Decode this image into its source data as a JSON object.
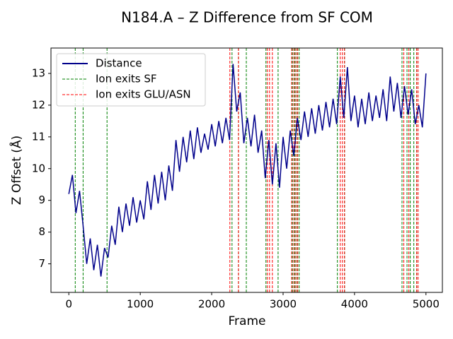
{
  "chart_data": {
    "type": "line",
    "title": "N184.A – Z Difference from SF COM",
    "x_label": "Frame",
    "y_label": "Z Offset (Å)",
    "xlim": [
      -250,
      5230
    ],
    "ylim": [
      6.1,
      13.8
    ],
    "xticks": [
      0,
      1000,
      2000,
      3000,
      4000,
      5000
    ],
    "yticks": [
      7,
      8,
      9,
      10,
      11,
      12,
      13
    ],
    "legend": "upper left",
    "x": [
      0,
      50,
      100,
      150,
      200,
      250,
      300,
      350,
      400,
      450,
      500,
      550,
      600,
      650,
      700,
      750,
      800,
      850,
      900,
      950,
      1000,
      1050,
      1100,
      1150,
      1200,
      1250,
      1300,
      1350,
      1400,
      1450,
      1500,
      1550,
      1600,
      1650,
      1700,
      1750,
      1800,
      1850,
      1900,
      1950,
      2000,
      2050,
      2100,
      2150,
      2200,
      2250,
      2300,
      2350,
      2400,
      2450,
      2500,
      2550,
      2600,
      2650,
      2700,
      2750,
      2800,
      2850,
      2900,
      2950,
      3000,
      3050,
      3100,
      3150,
      3200,
      3250,
      3300,
      3350,
      3400,
      3450,
      3500,
      3550,
      3600,
      3650,
      3700,
      3750,
      3800,
      3850,
      3900,
      3950,
      4000,
      4050,
      4100,
      4150,
      4200,
      4250,
      4300,
      4350,
      4400,
      4450,
      4500,
      4550,
      4600,
      4650,
      4700,
      4750,
      4800,
      4850,
      4900,
      4950,
      5000
    ],
    "series": [
      {
        "name": "Distance",
        "color": "#00008b",
        "values": [
          9.2,
          9.8,
          8.6,
          9.3,
          8.2,
          7.0,
          7.8,
          6.8,
          7.6,
          6.6,
          7.5,
          7.2,
          8.2,
          7.6,
          8.8,
          8.0,
          8.9,
          8.2,
          9.1,
          8.3,
          9.0,
          8.4,
          9.6,
          8.7,
          9.8,
          8.9,
          9.9,
          9.0,
          10.1,
          9.3,
          10.9,
          9.9,
          11.0,
          10.2,
          11.2,
          10.3,
          11.3,
          10.5,
          11.1,
          10.6,
          11.4,
          10.7,
          11.5,
          10.8,
          11.6,
          10.9,
          13.3,
          11.8,
          12.4,
          10.8,
          11.6,
          10.7,
          11.7,
          10.5,
          11.2,
          9.7,
          10.9,
          9.5,
          10.8,
          9.4,
          11.0,
          10.0,
          11.2,
          10.4,
          11.6,
          10.9,
          11.8,
          11.0,
          11.9,
          11.1,
          12.0,
          11.2,
          12.1,
          11.3,
          12.2,
          11.4,
          12.9,
          11.6,
          13.2,
          11.5,
          12.3,
          11.3,
          12.2,
          11.4,
          12.4,
          11.5,
          12.3,
          11.6,
          12.5,
          11.5,
          12.9,
          11.8,
          12.7,
          11.6,
          12.6,
          11.7,
          12.5,
          11.4,
          12.0,
          11.3,
          13.0
        ]
      }
    ],
    "vlines": [
      {
        "name": "Ion exits SF",
        "color": "#008000",
        "x": [
          90,
          200,
          535,
          2285,
          2375,
          2485,
          2760,
          2930,
          3130,
          3165,
          3200,
          3225,
          3760,
          3860,
          4665,
          4735,
          4780,
          4830,
          4870
        ]
      },
      {
        "name": "Ion exits GLU/ASN",
        "color": "#ff0000",
        "x": [
          2255,
          2375,
          2780,
          2810,
          2850,
          3120,
          3150,
          3180,
          3205,
          3800,
          3830,
          3860,
          4690,
          4760,
          4870,
          4890
        ]
      }
    ]
  }
}
